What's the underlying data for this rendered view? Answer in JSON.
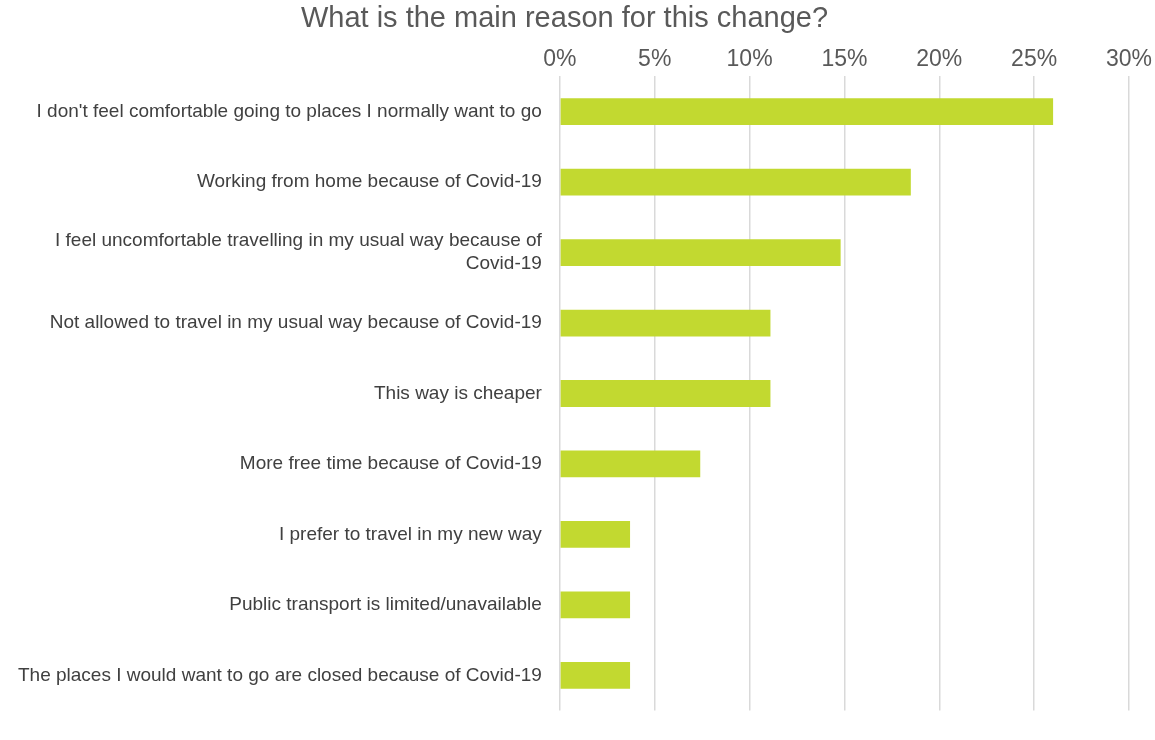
{
  "chart_data": {
    "type": "bar",
    "orientation": "horizontal",
    "title": "What is the main reason for this change?",
    "categories": [
      "I don't feel comfortable going to places I normally want to go",
      "Working from home because of Covid-19",
      "I feel uncomfortable travelling in my usual way because of Covid-19",
      "Not allowed to travel in my usual way because of Covid-19",
      "This way is cheaper",
      "More free time because of Covid-19",
      "I prefer to travel in my new way",
      "Public transport is limited/unavailable",
      "The places I would want to go are closed because of Covid-19"
    ],
    "values": [
      26,
      18.5,
      14.8,
      11.1,
      11.1,
      7.4,
      3.7,
      3.7,
      3.7
    ],
    "color": "#c2d930",
    "xlim": [
      0,
      30
    ],
    "xticks": [
      {
        "value": 0,
        "label": "0%"
      },
      {
        "value": 5,
        "label": "5%"
      },
      {
        "value": 10,
        "label": "10%"
      },
      {
        "value": 15,
        "label": "15%"
      },
      {
        "value": 20,
        "label": "20%"
      },
      {
        "value": 25,
        "label": "25%"
      },
      {
        "value": 30,
        "label": "30%"
      }
    ],
    "grid": "x"
  }
}
